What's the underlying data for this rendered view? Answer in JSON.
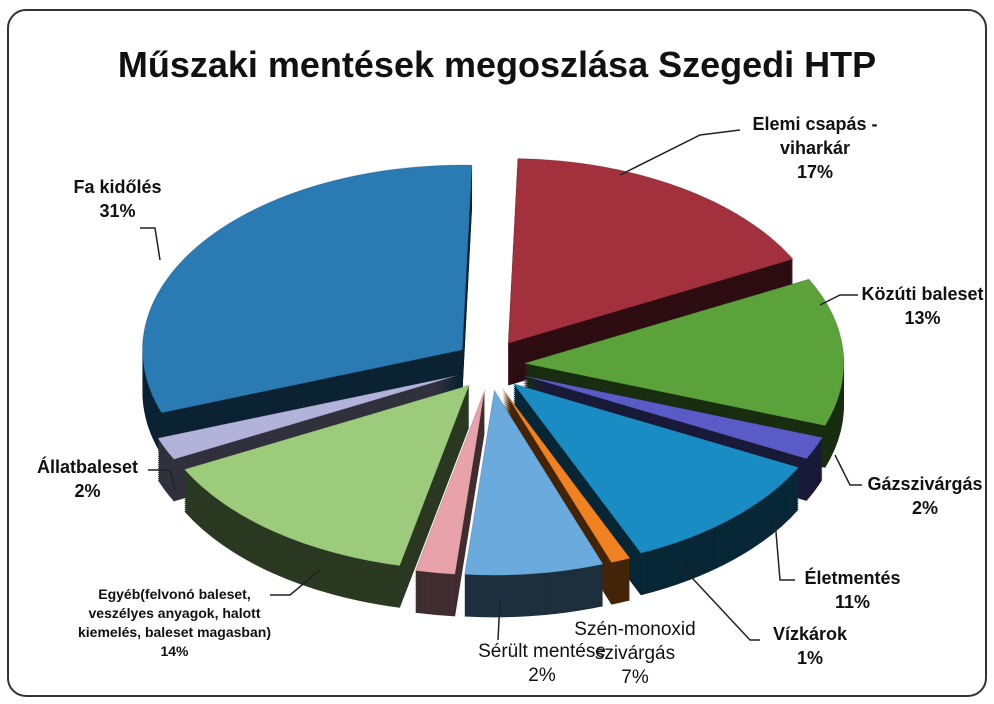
{
  "chart_data": {
    "type": "pie",
    "title": "Műszaki mentések megoszlása Szegedi HTP",
    "categories": [
      "Elemi csapás - viharkár",
      "Közúti baleset",
      "Gázszivárgás",
      "Életmentés",
      "Vízkárok",
      "Szén-monoxid szivárgás",
      "Sérült mentése",
      "Egyéb(felvonó baleset, veszélyes anyagok, halott kiemelés, baleset magasban)",
      "Állatbaleset",
      "Fa kidőlés"
    ],
    "values": [
      17,
      13,
      2,
      11,
      1,
      7,
      2,
      14,
      2,
      31
    ],
    "value_labels": [
      "17%",
      "13%",
      "2%",
      "11%",
      "1%",
      "7%",
      "2%",
      "14%",
      "2%",
      "31%"
    ],
    "colors": [
      "#a3303d",
      "#5ba23b",
      "#5b5bc8",
      "#1a8cc4",
      "#f08222",
      "#6aaadc",
      "#e8a2aa",
      "#9ccb7c",
      "#b2b2da",
      "#2a7ab4"
    ]
  }
}
